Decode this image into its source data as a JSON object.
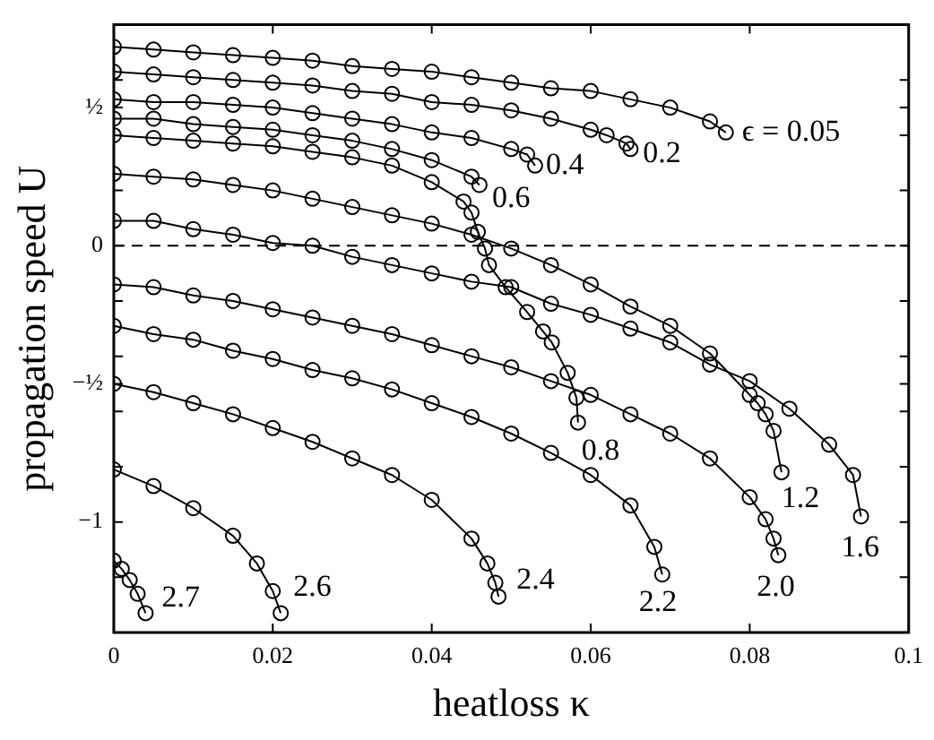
{
  "chart_data": {
    "type": "line",
    "xlabel": "heatloss κ",
    "ylabel": "propagation speed U",
    "marker": "circle",
    "line_style": "solid",
    "grid": false,
    "legend": false,
    "xlim": [
      0,
      0.1
    ],
    "ylim": [
      -1.4,
      0.8
    ],
    "xticks": [
      0,
      0.02,
      0.04,
      0.06,
      0.08,
      0.1
    ],
    "yticks": [
      {
        "value": -1.2,
        "label": null
      },
      {
        "value": -1,
        "label": "−1"
      },
      {
        "value": -0.8,
        "label": null
      },
      {
        "value": -0.6,
        "label": null
      },
      {
        "value": -0.5,
        "label": "−½"
      },
      {
        "value": -0.4,
        "label": null
      },
      {
        "value": -0.2,
        "label": null
      },
      {
        "value": 0,
        "label": "0"
      },
      {
        "value": 0.2,
        "label": null
      },
      {
        "value": 0.4,
        "label": null
      },
      {
        "value": 0.5,
        "label": "½"
      },
      {
        "value": 0.6,
        "label": null
      },
      {
        "value": 0.8,
        "label": null
      }
    ],
    "ref_lines": [
      {
        "axis": "y",
        "value": 0,
        "color": "#000000",
        "line_style": "dashed"
      }
    ],
    "series": [
      {
        "color": "#000000",
        "x": [
          0,
          0.005,
          0.01,
          0.015,
          0.02,
          0.025,
          0.03,
          0.035,
          0.04,
          0.045,
          0.05,
          0.055,
          0.06,
          0.065,
          0.07,
          0.075,
          0.077
        ],
        "values": [
          0.72,
          0.71,
          0.7,
          0.69,
          0.68,
          0.67,
          0.65,
          0.64,
          0.63,
          0.61,
          0.59,
          0.57,
          0.56,
          0.53,
          0.5,
          0.45,
          0.41
        ]
      },
      {
        "color": "#000000",
        "x": [
          0,
          0.005,
          0.01,
          0.015,
          0.02,
          0.025,
          0.03,
          0.035,
          0.04,
          0.045,
          0.05,
          0.055,
          0.06,
          0.062,
          0.0645,
          0.065
        ],
        "values": [
          0.63,
          0.62,
          0.61,
          0.6,
          0.59,
          0.58,
          0.56,
          0.55,
          0.52,
          0.51,
          0.49,
          0.46,
          0.42,
          0.4,
          0.37,
          0.35
        ]
      },
      {
        "color": "#000000",
        "x": [
          0,
          0.005,
          0.01,
          0.015,
          0.02,
          0.025,
          0.03,
          0.035,
          0.04,
          0.045,
          0.05,
          0.052,
          0.053
        ],
        "values": [
          0.53,
          0.52,
          0.52,
          0.51,
          0.5,
          0.48,
          0.46,
          0.44,
          0.41,
          0.39,
          0.35,
          0.33,
          0.29
        ]
      },
      {
        "color": "#000000",
        "x": [
          0,
          0.005,
          0.01,
          0.015,
          0.02,
          0.025,
          0.03,
          0.035,
          0.04,
          0.045,
          0.046
        ],
        "values": [
          0.46,
          0.46,
          0.44,
          0.43,
          0.42,
          0.4,
          0.38,
          0.35,
          0.31,
          0.25,
          0.22
        ]
      },
      {
        "color": "#000000",
        "x": [
          0,
          0.005,
          0.01,
          0.015,
          0.02,
          0.025,
          0.03,
          0.035,
          0.04,
          0.044,
          0.045,
          0.0458,
          0.0467,
          0.0472,
          0.0493,
          0.052,
          0.054,
          0.0551,
          0.0571,
          0.0582,
          0.0584
        ],
        "values": [
          0.4,
          0.39,
          0.38,
          0.37,
          0.36,
          0.34,
          0.32,
          0.29,
          0.23,
          0.16,
          0.12,
          0.05,
          -0.01,
          -0.07,
          -0.15,
          -0.24,
          -0.31,
          -0.35,
          -0.46,
          -0.55,
          -0.64
        ]
      },
      {
        "color": "#000000",
        "x": [
          0,
          0.005,
          0.01,
          0.015,
          0.02,
          0.025,
          0.03,
          0.035,
          0.04,
          0.045,
          0.05,
          0.055,
          0.06,
          0.065,
          0.07,
          0.075,
          0.08,
          0.081,
          0.082,
          0.083,
          0.084
        ],
        "values": [
          0.26,
          0.25,
          0.24,
          0.22,
          0.2,
          0.17,
          0.14,
          0.11,
          0.08,
          0.04,
          -0.01,
          -0.07,
          -0.14,
          -0.22,
          -0.29,
          -0.39,
          -0.54,
          -0.57,
          -0.61,
          -0.67,
          -0.82
        ]
      },
      {
        "color": "#000000",
        "x": [
          0,
          0.005,
          0.01,
          0.015,
          0.02,
          0.025,
          0.03,
          0.035,
          0.04,
          0.045,
          0.05,
          0.055,
          0.06,
          0.065,
          0.07,
          0.075,
          0.08,
          0.085,
          0.09,
          0.093,
          0.094
        ],
        "values": [
          0.09,
          0.09,
          0.06,
          0.04,
          0.01,
          0,
          -0.04,
          -0.07,
          -0.1,
          -0.13,
          -0.15,
          -0.21,
          -0.25,
          -0.3,
          -0.35,
          -0.43,
          -0.49,
          -0.59,
          -0.72,
          -0.83,
          -0.98
        ]
      },
      {
        "color": "#000000",
        "x": [
          0,
          0.005,
          0.01,
          0.015,
          0.02,
          0.025,
          0.03,
          0.035,
          0.04,
          0.045,
          0.05,
          0.055,
          0.06,
          0.065,
          0.07,
          0.075,
          0.08,
          0.082,
          0.083,
          0.0836
        ],
        "values": [
          -0.14,
          -0.15,
          -0.18,
          -0.2,
          -0.23,
          -0.26,
          -0.29,
          -0.32,
          -0.36,
          -0.4,
          -0.44,
          -0.49,
          -0.54,
          -0.61,
          -0.68,
          -0.77,
          -0.91,
          -0.99,
          -1.06,
          -1.12
        ]
      },
      {
        "color": "#000000",
        "x": [
          0,
          0.005,
          0.01,
          0.015,
          0.02,
          0.025,
          0.03,
          0.035,
          0.04,
          0.045,
          0.05,
          0.055,
          0.06,
          0.065,
          0.068,
          0.069
        ],
        "values": [
          -0.29,
          -0.32,
          -0.34,
          -0.38,
          -0.41,
          -0.45,
          -0.48,
          -0.52,
          -0.57,
          -0.62,
          -0.68,
          -0.75,
          -0.83,
          -0.94,
          -1.09,
          -1.19
        ]
      },
      {
        "color": "#000000",
        "x": [
          0,
          0.005,
          0.01,
          0.015,
          0.02,
          0.025,
          0.03,
          0.035,
          0.04,
          0.045,
          0.047,
          0.048,
          0.0484
        ],
        "values": [
          -0.5,
          -0.53,
          -0.57,
          -0.61,
          -0.66,
          -0.71,
          -0.77,
          -0.83,
          -0.92,
          -1.06,
          -1.15,
          -1.22,
          -1.27
        ]
      },
      {
        "color": "#000000",
        "x": [
          0,
          0.005,
          0.01,
          0.015,
          0.018,
          0.02,
          0.021
        ],
        "values": [
          -0.81,
          -0.87,
          -0.95,
          -1.05,
          -1.15,
          -1.25,
          -1.33
        ]
      },
      {
        "color": "#000000",
        "x": [
          0,
          0.001,
          0.002,
          0.003,
          0.004
        ],
        "values": [
          -1.14,
          -1.17,
          -1.21,
          -1.26,
          -1.33
        ]
      }
    ],
    "annotations": [
      {
        "text": "ϵ = 0.05",
        "x": 0.077,
        "y": 0.41
      },
      {
        "text": "0.2",
        "x": 0.065,
        "y": 0.35
      },
      {
        "text": "0.4",
        "x": 0.053,
        "y": 0.29
      },
      {
        "text": "0.6",
        "x": 0.046,
        "y": 0.22
      },
      {
        "text": "0.8",
        "x": 0.0584,
        "y": -0.64
      },
      {
        "text": "1.2",
        "x": 0.084,
        "y": -0.82
      },
      {
        "text": "1.6",
        "x": 0.094,
        "y": -0.98
      },
      {
        "text": "2.0",
        "x": 0.0836,
        "y": -1.12
      },
      {
        "text": "2.2",
        "x": 0.069,
        "y": -1.19
      },
      {
        "text": "2.4",
        "x": 0.0484,
        "y": -1.27
      },
      {
        "text": "2.6",
        "x": 0.021,
        "y": -1.33
      },
      {
        "text": "2.7",
        "x": 0.004,
        "y": -1.33
      }
    ]
  }
}
